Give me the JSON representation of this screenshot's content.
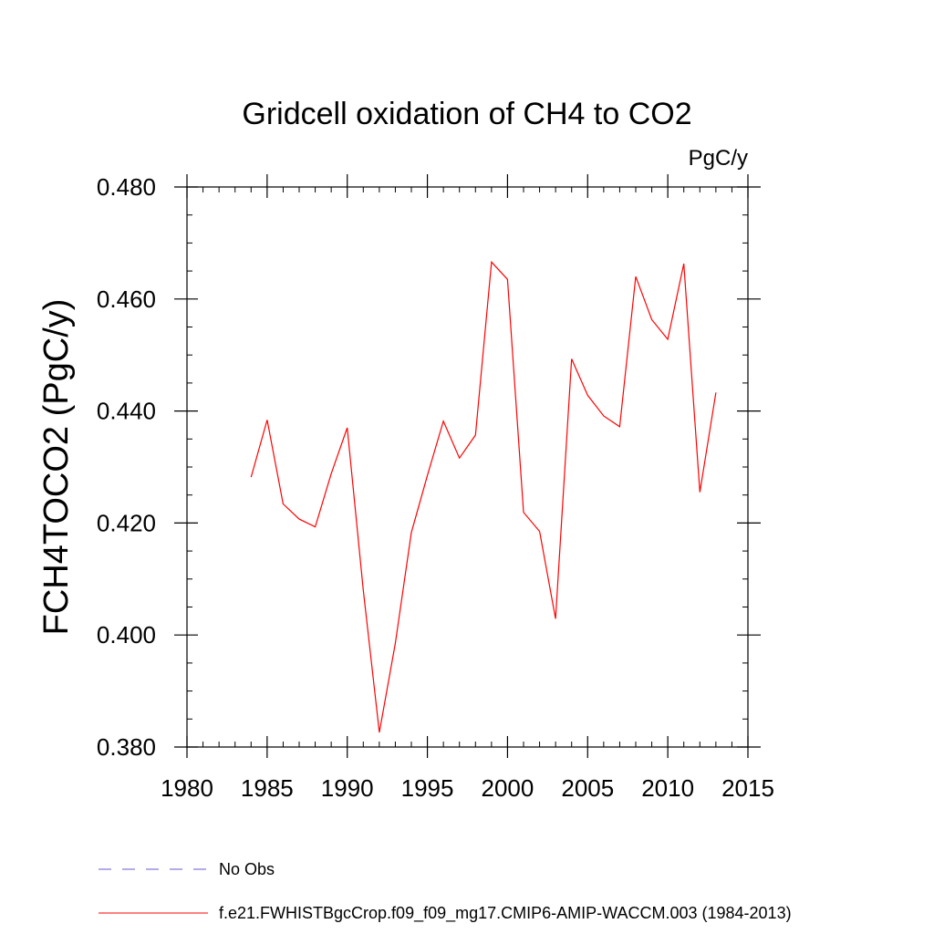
{
  "chart_data": {
    "type": "line",
    "title": "Gridcell oxidation of CH4 to CO2",
    "units_label": "PgC/y",
    "xlabel": "",
    "ylabel": "FCH4TOCO2  (PgC/y)",
    "xlim": [
      1980,
      2015
    ],
    "ylim": [
      0.38,
      0.48
    ],
    "x_ticks": [
      1980,
      1985,
      1990,
      1995,
      2000,
      2005,
      2010,
      2015
    ],
    "x_tick_labels": [
      "1980",
      "1985",
      "1990",
      "1995",
      "2000",
      "2005",
      "2010",
      "2015"
    ],
    "y_ticks": [
      0.38,
      0.4,
      0.42,
      0.44,
      0.46,
      0.48
    ],
    "y_tick_labels": [
      "0.380",
      "0.400",
      "0.420",
      "0.440",
      "0.460",
      "0.480"
    ],
    "grid": false,
    "legend_position": "bottom",
    "legend": [
      {
        "label": "No Obs",
        "color": "#6a5acd",
        "style": "dashed"
      },
      {
        "label": "f.e21.FWHISTBgcCrop.f09_f09_mg17.CMIP6-AMIP-WACCM.003 (1984-2013)",
        "color": "#ff0000",
        "style": "solid"
      }
    ],
    "series": [
      {
        "name": "f.e21.FWHISTBgcCrop.f09_f09_mg17.CMIP6-AMIP-WACCM.003 (1984-2013)",
        "color": "#ff0000",
        "x": [
          1984,
          1985,
          1986,
          1987,
          1988,
          1989,
          1990,
          1991,
          1992,
          1993,
          1994,
          1995,
          1996,
          1997,
          1998,
          1999,
          2000,
          2001,
          2002,
          2003,
          2004,
          2005,
          2006,
          2007,
          2008,
          2009,
          2010,
          2011,
          2012,
          2013
        ],
        "y": [
          0.4282,
          0.4384,
          0.4234,
          0.4207,
          0.4193,
          0.4288,
          0.437,
          0.408,
          0.3826,
          0.3985,
          0.4183,
          0.4285,
          0.4382,
          0.4316,
          0.4357,
          0.4666,
          0.4635,
          0.4219,
          0.4185,
          0.4029,
          0.4493,
          0.4428,
          0.4391,
          0.4372,
          0.464,
          0.4563,
          0.4528,
          0.4663,
          0.4255,
          0.4433
        ]
      }
    ]
  }
}
